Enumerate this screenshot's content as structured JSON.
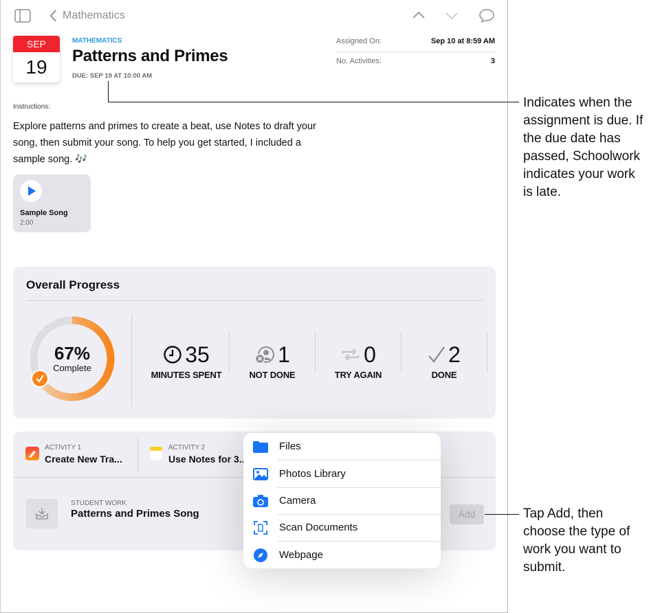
{
  "nav": {
    "back_label": "Mathematics"
  },
  "assignment": {
    "month": "SEP",
    "day": "19",
    "subject": "MATHEMATICS",
    "title": "Patterns and Primes",
    "due": "DUE: SEP 19 AT 10:00 AM"
  },
  "meta": {
    "assigned_on_label": "Assigned On:",
    "assigned_on_value": "Sep 10 at 8:59 AM",
    "activities_label": "No. Activities:",
    "activities_value": "3"
  },
  "instructions": {
    "label": "Instructions:",
    "text": "Explore patterns and primes to create a beat, use Notes to draft your song, then submit your song. To help you get started, I included a sample song. 🎶"
  },
  "sample": {
    "title": "Sample Song",
    "duration": "2:00"
  },
  "progress": {
    "title": "Overall Progress",
    "percent_label": "67%",
    "percent": 67,
    "complete_label": "Complete",
    "accent": "#f7851c",
    "stats": [
      {
        "value": "35",
        "label": "MINUTES SPENT",
        "icon": "clock-icon"
      },
      {
        "value": "1",
        "label": "NOT DONE",
        "icon": "person-x-icon"
      },
      {
        "value": "0",
        "label": "TRY AGAIN",
        "icon": "repeat-icon"
      },
      {
        "value": "2",
        "label": "DONE",
        "icon": "checkmark-icon"
      }
    ]
  },
  "activities": [
    {
      "label": "ACTIVITY 1",
      "title": "Create New Tra...",
      "icon": "garageband-icon"
    },
    {
      "label": "ACTIVITY 2",
      "title": "Use Notes for 3...",
      "icon": "notes-icon"
    }
  ],
  "student_work": {
    "label": "STUDENT WORK",
    "title": "Patterns and Primes Song",
    "add_label": "Add"
  },
  "menu": [
    {
      "label": "Files",
      "icon": "folder-icon"
    },
    {
      "label": "Photos Library",
      "icon": "photo-icon"
    },
    {
      "label": "Camera",
      "icon": "camera-icon"
    },
    {
      "label": "Scan Documents",
      "icon": "scan-icon"
    },
    {
      "label": "Webpage",
      "icon": "compass-icon"
    }
  ],
  "callouts": {
    "due": "Indicates when the assignment is due. If the due date has passed, Schoolwork indicates your work is late.",
    "add": "Tap Add, then choose the type of work you want to submit."
  },
  "colors": {
    "blue": "#1a73f5",
    "red": "#f0242c",
    "subject": "#2f9be0"
  }
}
